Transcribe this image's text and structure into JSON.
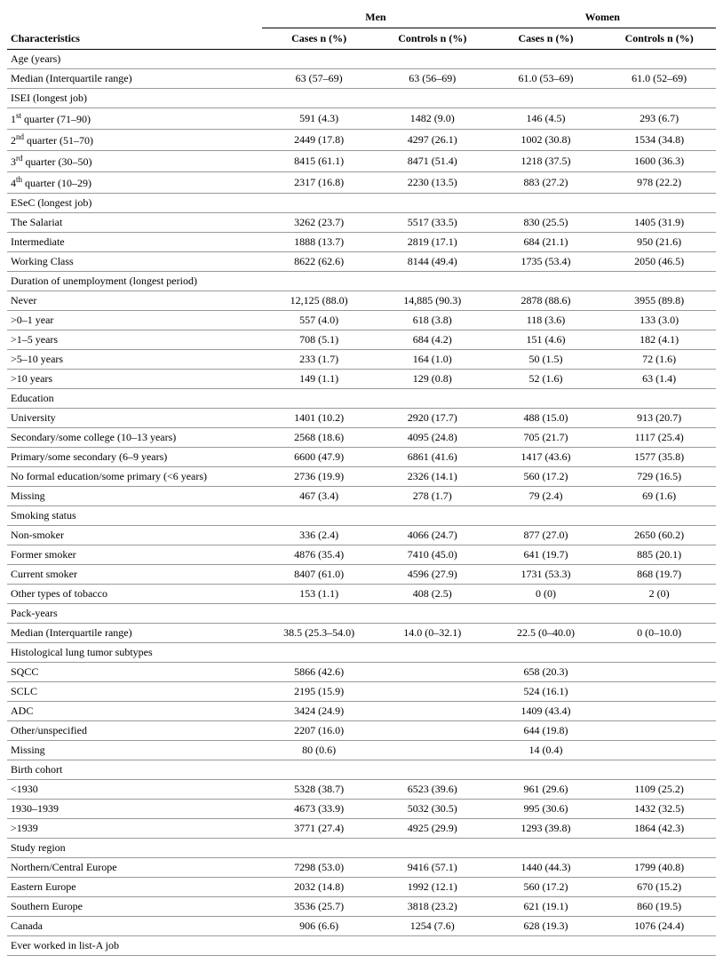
{
  "table": {
    "group_headers": [
      "Men",
      "Women"
    ],
    "columns": [
      "Characteristics",
      "Cases n (%)",
      "Controls n (%)",
      "Cases n (%)",
      "Controls n (%)"
    ],
    "rows": [
      {
        "label": "Age (years)",
        "values": [
          "",
          "",
          "",
          ""
        ]
      },
      {
        "label": "Median (Interquartile range)",
        "values": [
          "63 (57–69)",
          "63 (56–69)",
          "61.0 (53–69)",
          "61.0 (52–69)"
        ]
      },
      {
        "label": "ISEI (longest job)",
        "values": [
          "",
          "",
          "",
          ""
        ]
      },
      {
        "label_html": "1<sup>st</sup> quarter (71–90)",
        "values": [
          "591 (4.3)",
          "1482 (9.0)",
          "146 (4.5)",
          "293 (6.7)"
        ]
      },
      {
        "label_html": "2<sup>nd</sup> quarter (51–70)",
        "values": [
          "2449 (17.8)",
          "4297 (26.1)",
          "1002 (30.8)",
          "1534 (34.8)"
        ]
      },
      {
        "label_html": "3<sup>rd</sup> quarter (30–50)",
        "values": [
          "8415 (61.1)",
          "8471 (51.4)",
          "1218 (37.5)",
          "1600 (36.3)"
        ]
      },
      {
        "label_html": "4<sup>th</sup> quarter (10–29)",
        "values": [
          "2317 (16.8)",
          "2230 (13.5)",
          "883 (27.2)",
          "978 (22.2)"
        ]
      },
      {
        "label": "ESeC (longest job)",
        "values": [
          "",
          "",
          "",
          ""
        ]
      },
      {
        "label": "The Salariat",
        "values": [
          "3262 (23.7)",
          "5517 (33.5)",
          "830 (25.5)",
          "1405 (31.9)"
        ]
      },
      {
        "label": "Intermediate",
        "values": [
          "1888 (13.7)",
          "2819 (17.1)",
          "684 (21.1)",
          "950 (21.6)"
        ]
      },
      {
        "label": "Working Class",
        "values": [
          "8622 (62.6)",
          "8144 (49.4)",
          "1735 (53.4)",
          "2050 (46.5)"
        ]
      },
      {
        "label": "Duration of unemployment (longest period)",
        "values": [
          "",
          "",
          "",
          ""
        ]
      },
      {
        "label": "Never",
        "values": [
          "12,125 (88.0)",
          "14,885 (90.3)",
          "2878 (88.6)",
          "3955 (89.8)"
        ]
      },
      {
        "label": ">0–1 year",
        "values": [
          "557 (4.0)",
          "618 (3.8)",
          "118 (3.6)",
          "133 (3.0)"
        ]
      },
      {
        "label": ">1–5 years",
        "values": [
          "708 (5.1)",
          "684 (4.2)",
          "151 (4.6)",
          "182 (4.1)"
        ]
      },
      {
        "label": ">5–10 years",
        "values": [
          "233 (1.7)",
          "164 (1.0)",
          "50 (1.5)",
          "72 (1.6)"
        ]
      },
      {
        "label": ">10 years",
        "values": [
          "149 (1.1)",
          "129 (0.8)",
          "52 (1.6)",
          "63 (1.4)"
        ]
      },
      {
        "label": "Education",
        "values": [
          "",
          "",
          "",
          ""
        ]
      },
      {
        "label": "University",
        "values": [
          "1401 (10.2)",
          "2920 (17.7)",
          "488 (15.0)",
          "913 (20.7)"
        ]
      },
      {
        "label": "Secondary/some college (10–13 years)",
        "values": [
          "2568 (18.6)",
          "4095 (24.8)",
          "705 (21.7)",
          "1117 (25.4)"
        ]
      },
      {
        "label": "Primary/some secondary (6–9 years)",
        "values": [
          "6600 (47.9)",
          "6861 (41.6)",
          "1417 (43.6)",
          "1577 (35.8)"
        ]
      },
      {
        "label": "No formal education/some primary (<6 years)",
        "values": [
          "2736 (19.9)",
          "2326 (14.1)",
          "560 (17.2)",
          "729 (16.5)"
        ]
      },
      {
        "label": "Missing",
        "values": [
          "467 (3.4)",
          "278 (1.7)",
          "79 (2.4)",
          "69 (1.6)"
        ]
      },
      {
        "label": "Smoking status",
        "values": [
          "",
          "",
          "",
          ""
        ]
      },
      {
        "label": "Non-smoker",
        "values": [
          "336 (2.4)",
          "4066 (24.7)",
          "877 (27.0)",
          "2650 (60.2)"
        ]
      },
      {
        "label": "Former smoker",
        "values": [
          "4876 (35.4)",
          "7410 (45.0)",
          "641 (19.7)",
          "885 (20.1)"
        ]
      },
      {
        "label": "Current smoker",
        "values": [
          "8407 (61.0)",
          "4596 (27.9)",
          "1731 (53.3)",
          "868 (19.7)"
        ]
      },
      {
        "label": "Other types of tobacco",
        "values": [
          "153 (1.1)",
          "408 (2.5)",
          "0 (0)",
          "2 (0)"
        ]
      },
      {
        "label": "Pack-years",
        "values": [
          "",
          "",
          "",
          ""
        ]
      },
      {
        "label": "Median (Interquartile range)",
        "values": [
          "38.5 (25.3–54.0)",
          "14.0 (0–32.1)",
          "22.5 (0–40.0)",
          "0 (0–10.0)"
        ]
      },
      {
        "label": "Histological lung tumor subtypes",
        "values": [
          "",
          "",
          "",
          ""
        ]
      },
      {
        "label": "SQCC",
        "values": [
          "5866 (42.6)",
          "",
          "658 (20.3)",
          ""
        ]
      },
      {
        "label": "SCLC",
        "values": [
          "2195 (15.9)",
          "",
          "524 (16.1)",
          ""
        ]
      },
      {
        "label": "ADC",
        "values": [
          "3424 (24.9)",
          "",
          "1409 (43.4)",
          ""
        ]
      },
      {
        "label": "Other/unspecified",
        "values": [
          "2207 (16.0)",
          "",
          "644 (19.8)",
          ""
        ]
      },
      {
        "label": "Missing",
        "values": [
          "80 (0.6)",
          "",
          "14 (0.4)",
          ""
        ]
      },
      {
        "label": "Birth cohort",
        "values": [
          "",
          "",
          "",
          ""
        ]
      },
      {
        "label": "<1930",
        "values": [
          "5328 (38.7)",
          "6523 (39.6)",
          "961 (29.6)",
          "1109 (25.2)"
        ]
      },
      {
        "label": "1930–1939",
        "values": [
          "4673 (33.9)",
          "5032 (30.5)",
          "995 (30.6)",
          "1432 (32.5)"
        ]
      },
      {
        "label": ">1939",
        "values": [
          "3771 (27.4)",
          "4925 (29.9)",
          "1293 (39.8)",
          "1864 (42.3)"
        ]
      },
      {
        "label": "Study region",
        "values": [
          "",
          "",
          "",
          ""
        ]
      },
      {
        "label": "Northern/Central Europe",
        "values": [
          "7298 (53.0)",
          "9416 (57.1)",
          "1440 (44.3)",
          "1799 (40.8)"
        ]
      },
      {
        "label": "Eastern Europe",
        "values": [
          "2032 (14.8)",
          "1992 (12.1)",
          "560 (17.2)",
          "670 (15.2)"
        ]
      },
      {
        "label": "Southern Europe",
        "values": [
          "3536 (25.7)",
          "3818 (23.2)",
          "621 (19.1)",
          "860 (19.5)"
        ]
      },
      {
        "label": "Canada",
        "values": [
          "906 (6.6)",
          "1254 (7.6)",
          "628 (19.3)",
          "1076 (24.4)"
        ]
      },
      {
        "label": "Ever worked in list-A job",
        "values": [
          "",
          "",
          "",
          ""
        ]
      }
    ]
  },
  "style": {
    "font_family": "Times New Roman, serif",
    "font_size_pt": 9,
    "header_font_weight": "bold",
    "border_color": "#999999",
    "header_border_color": "#000000",
    "background_color": "#ffffff",
    "text_color": "#000000",
    "col_widths_pct": [
      36,
      16,
      16,
      16,
      16
    ]
  }
}
